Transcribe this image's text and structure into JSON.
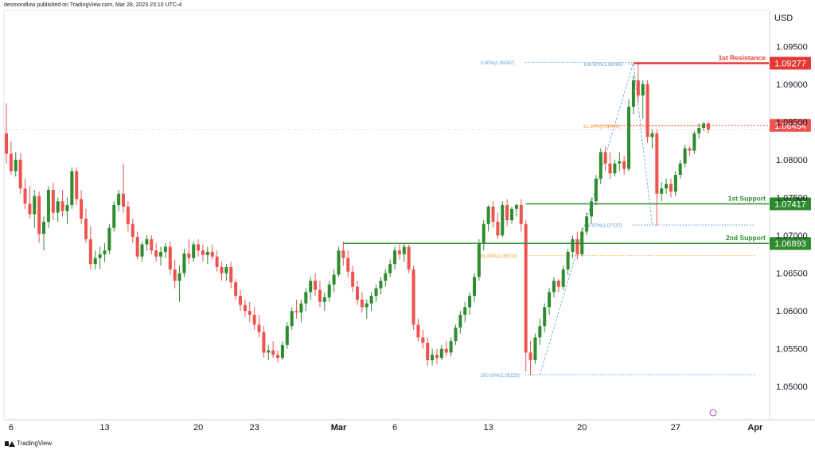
{
  "header": {
    "attribution": "desmondlow published on TradingView.com, Mar 28, 2023 23:10 UTC-4"
  },
  "brand": {
    "name": "TradingView"
  },
  "colors": {
    "up": "#2e8b2e",
    "down": "#ef5350",
    "resistance": "#e53935",
    "support": "#2e8b2e",
    "fib": "#5b9bd5",
    "fib_orange": "#f0a030",
    "axis_text": "#131722"
  },
  "chart_data": {
    "type": "candlestick",
    "currency": "USD",
    "ylim": [
      1.0475,
      1.0985
    ],
    "y_ticks": [
      "1.09500",
      "1.09000",
      "1.08500",
      "1.08000",
      "1.07500",
      "1.07000",
      "1.06500",
      "1.06000",
      "1.05500",
      "1.05000"
    ],
    "x_ticks": [
      {
        "label": "6",
        "bar": 1
      },
      {
        "label": "13",
        "bar": 21
      },
      {
        "label": "20",
        "bar": 41
      },
      {
        "label": "23",
        "bar": 53
      },
      {
        "label": "Mar",
        "bar": 71
      },
      {
        "label": "6",
        "bar": 83
      },
      {
        "label": "13",
        "bar": 103
      },
      {
        "label": "20",
        "bar": 123
      },
      {
        "label": "27",
        "bar": 143
      },
      {
        "label": "Apr",
        "bar": 160
      }
    ],
    "levels": [
      {
        "name": "1st Resistance",
        "value": "1.09277",
        "y": 1.09277,
        "role": "resistance",
        "from_bar": 134
      },
      {
        "name": "",
        "value": "1.08454",
        "y": 1.08454,
        "role": "last",
        "from_bar": 124
      },
      {
        "name": "1st Support",
        "value": "1.07417",
        "y": 1.07417,
        "role": "support",
        "from_bar": 111
      },
      {
        "name": "2nd Support",
        "value": "1.06893",
        "y": 1.06893,
        "role": "support",
        "from_bar": 72
      }
    ],
    "fib_labels": [
      {
        "text": "0.00%(1.09287)",
        "y": 1.09287,
        "bar": 102,
        "to_bar": 134,
        "color": "fib"
      },
      {
        "text": "100.00%(1.09266)",
        "y": 1.09266,
        "bar": 124,
        "to_bar": 134,
        "color": "fib"
      },
      {
        "text": "61.80%(1.08446)",
        "y": 1.08446,
        "bar": 124,
        "to_bar": 150,
        "color": "fib_orange"
      },
      {
        "text": "0.00%(1.07137)",
        "y": 1.07137,
        "bar": 125,
        "to_bar": 160,
        "color": "fib"
      },
      {
        "text": "61.80%(1.06733)",
        "y": 1.06733,
        "bar": 102,
        "to_bar": 160,
        "color": "fib_orange"
      },
      {
        "text": "100.00%(1.05155)",
        "y": 1.05155,
        "bar": 102,
        "to_bar": 160,
        "color": "fib"
      }
    ],
    "candles": [
      [
        1.0835,
        1.0875,
        1.0795,
        1.0808
      ],
      [
        1.0808,
        1.0825,
        1.078,
        1.0785
      ],
      [
        1.0785,
        1.081,
        1.0778,
        1.08
      ],
      [
        1.08,
        1.0808,
        1.0755,
        1.0762
      ],
      [
        1.0762,
        1.0775,
        1.0735,
        1.0742
      ],
      [
        1.0742,
        1.0765,
        1.0722,
        1.0728
      ],
      [
        1.0728,
        1.076,
        1.071,
        1.0752
      ],
      [
        1.0752,
        1.0758,
        1.069,
        1.0702
      ],
      [
        1.0702,
        1.0725,
        1.068,
        1.0718
      ],
      [
        1.0718,
        1.0765,
        1.071,
        1.076
      ],
      [
        1.076,
        1.077,
        1.072,
        1.073
      ],
      [
        1.073,
        1.075,
        1.0718,
        1.0745
      ],
      [
        1.0745,
        1.076,
        1.0725,
        1.0732
      ],
      [
        1.0732,
        1.075,
        1.0715,
        1.074
      ],
      [
        1.074,
        1.079,
        1.0735,
        1.0785
      ],
      [
        1.0785,
        1.079,
        1.074,
        1.0748
      ],
      [
        1.0748,
        1.076,
        1.0715,
        1.0722
      ],
      [
        1.0722,
        1.0735,
        1.069,
        1.0695
      ],
      [
        1.0695,
        1.0712,
        1.0655,
        1.0662
      ],
      [
        1.0662,
        1.068,
        1.0655,
        1.067
      ],
      [
        1.067,
        1.0685,
        1.0655,
        1.0675
      ],
      [
        1.0675,
        1.069,
        1.0665,
        1.068
      ],
      [
        1.068,
        1.0715,
        1.0675,
        1.071
      ],
      [
        1.071,
        1.0745,
        1.0705,
        1.074
      ],
      [
        1.074,
        1.076,
        1.0732,
        1.0755
      ],
      [
        1.0755,
        1.0795,
        1.073,
        1.0738
      ],
      [
        1.0738,
        1.0745,
        1.0705,
        1.0715
      ],
      [
        1.0715,
        1.0722,
        1.069,
        1.0698
      ],
      [
        1.0698,
        1.0705,
        1.0668,
        1.0672
      ],
      [
        1.0672,
        1.0692,
        1.0665,
        1.0688
      ],
      [
        1.0688,
        1.07,
        1.068,
        1.0695
      ],
      [
        1.0695,
        1.07,
        1.0675,
        1.068
      ],
      [
        1.068,
        1.069,
        1.0665,
        1.0672
      ],
      [
        1.0672,
        1.0685,
        1.066,
        1.0678
      ],
      [
        1.0678,
        1.069,
        1.067,
        1.0685
      ],
      [
        1.0685,
        1.0692,
        1.0648,
        1.0655
      ],
      [
        1.0655,
        1.0668,
        1.063,
        1.064
      ],
      [
        1.064,
        1.066,
        1.0612,
        1.065
      ],
      [
        1.065,
        1.0682,
        1.0645,
        1.0676
      ],
      [
        1.0676,
        1.0695,
        1.0662,
        1.067
      ],
      [
        1.067,
        1.0692,
        1.0665,
        1.0688
      ],
      [
        1.0688,
        1.0695,
        1.0672,
        1.068
      ],
      [
        1.068,
        1.0688,
        1.0665,
        1.0674
      ],
      [
        1.0674,
        1.0685,
        1.0662,
        1.0678
      ],
      [
        1.0678,
        1.0688,
        1.0668,
        1.0672
      ],
      [
        1.0672,
        1.068,
        1.0652,
        1.0658
      ],
      [
        1.0658,
        1.0665,
        1.064,
        1.065
      ],
      [
        1.065,
        1.0662,
        1.064,
        1.0658
      ],
      [
        1.0658,
        1.0665,
        1.063,
        1.0638
      ],
      [
        1.0638,
        1.0642,
        1.0615,
        1.062
      ],
      [
        1.062,
        1.0628,
        1.06,
        1.0608
      ],
      [
        1.0608,
        1.0615,
        1.0592,
        1.06
      ],
      [
        1.06,
        1.0612,
        1.0585,
        1.0595
      ],
      [
        1.0595,
        1.0605,
        1.0575,
        1.0582
      ],
      [
        1.0582,
        1.0595,
        1.0565,
        1.0572
      ],
      [
        1.0572,
        1.058,
        1.0538,
        1.0545
      ],
      [
        1.0545,
        1.0555,
        1.0535,
        1.0548
      ],
      [
        1.0548,
        1.056,
        1.0538,
        1.0542
      ],
      [
        1.0542,
        1.0548,
        1.0532,
        1.0538
      ],
      [
        1.0538,
        1.056,
        1.0535,
        1.0555
      ],
      [
        1.0555,
        1.0585,
        1.055,
        1.058
      ],
      [
        1.058,
        1.0605,
        1.0575,
        1.06
      ],
      [
        1.06,
        1.0615,
        1.059,
        1.0598
      ],
      [
        1.0598,
        1.0615,
        1.0585,
        1.061
      ],
      [
        1.061,
        1.063,
        1.06,
        1.0625
      ],
      [
        1.0625,
        1.0645,
        1.0615,
        1.064
      ],
      [
        1.064,
        1.065,
        1.062,
        1.0628
      ],
      [
        1.0628,
        1.064,
        1.0605,
        1.0612
      ],
      [
        1.0612,
        1.0625,
        1.06,
        1.0618
      ],
      [
        1.0618,
        1.064,
        1.0612,
        1.0635
      ],
      [
        1.0635,
        1.0655,
        1.0625,
        1.0648
      ],
      [
        1.0648,
        1.0685,
        1.0645,
        1.068
      ],
      [
        1.068,
        1.0692,
        1.066,
        1.067
      ],
      [
        1.067,
        1.068,
        1.0645,
        1.0652
      ],
      [
        1.0652,
        1.066,
        1.0625,
        1.0632
      ],
      [
        1.0632,
        1.064,
        1.0608,
        1.0615
      ],
      [
        1.0615,
        1.0625,
        1.0598,
        1.0605
      ],
      [
        1.0605,
        1.0615,
        1.059,
        1.061
      ],
      [
        1.061,
        1.0625,
        1.06,
        1.062
      ],
      [
        1.062,
        1.0635,
        1.0612,
        1.063
      ],
      [
        1.063,
        1.0645,
        1.0622,
        1.064
      ],
      [
        1.064,
        1.0655,
        1.0632,
        1.065
      ],
      [
        1.065,
        1.0668,
        1.0645,
        1.0662
      ],
      [
        1.0662,
        1.0685,
        1.0655,
        1.068
      ],
      [
        1.068,
        1.0688,
        1.0668,
        1.0675
      ],
      [
        1.0675,
        1.069,
        1.0665,
        1.0685
      ],
      [
        1.0685,
        1.0688,
        1.065,
        1.0655
      ],
      [
        1.0655,
        1.066,
        1.0575,
        1.0582
      ],
      [
        1.0582,
        1.059,
        1.056,
        1.0565
      ],
      [
        1.0565,
        1.0575,
        1.055,
        1.0558
      ],
      [
        1.0558,
        1.0565,
        1.0528,
        1.0535
      ],
      [
        1.0535,
        1.055,
        1.0528,
        1.0542
      ],
      [
        1.0542,
        1.055,
        1.053,
        1.0538
      ],
      [
        1.0538,
        1.0555,
        1.0535,
        1.055
      ],
      [
        1.055,
        1.056,
        1.054,
        1.0545
      ],
      [
        1.0545,
        1.0565,
        1.054,
        1.056
      ],
      [
        1.056,
        1.0582,
        1.0555,
        1.0578
      ],
      [
        1.0578,
        1.06,
        1.057,
        1.0595
      ],
      [
        1.0595,
        1.0612,
        1.0585,
        1.0605
      ],
      [
        1.0605,
        1.0625,
        1.0595,
        1.062
      ],
      [
        1.062,
        1.065,
        1.0612,
        1.0645
      ],
      [
        1.0645,
        1.0695,
        1.064,
        1.069
      ],
      [
        1.069,
        1.072,
        1.068,
        1.0715
      ],
      [
        1.0715,
        1.074,
        1.0705,
        1.0738
      ],
      [
        1.0738,
        1.0745,
        1.071,
        1.0718
      ],
      [
        1.0718,
        1.073,
        1.0695,
        1.07
      ],
      [
        1.07,
        1.0745,
        1.0698,
        1.074
      ],
      [
        1.074,
        1.0748,
        1.0712,
        1.072
      ],
      [
        1.072,
        1.0738,
        1.0715,
        1.0735
      ],
      [
        1.0735,
        1.0742,
        1.0725,
        1.074
      ],
      [
        1.074,
        1.0748,
        1.0705,
        1.0715
      ],
      [
        1.0715,
        1.072,
        1.052,
        1.0545
      ],
      [
        1.0545,
        1.056,
        1.0515,
        1.0535
      ],
      [
        1.0535,
        1.057,
        1.053,
        1.0565
      ],
      [
        1.0565,
        1.059,
        1.0555,
        1.058
      ],
      [
        1.058,
        1.061,
        1.0572,
        1.0605
      ],
      [
        1.0605,
        1.063,
        1.0595,
        1.0625
      ],
      [
        1.0625,
        1.0645,
        1.0618,
        1.064
      ],
      [
        1.064,
        1.0642,
        1.0625,
        1.0632
      ],
      [
        1.0632,
        1.066,
        1.0628,
        1.0655
      ],
      [
        1.0655,
        1.0682,
        1.0648,
        1.0678
      ],
      [
        1.0678,
        1.07,
        1.067,
        1.0695
      ],
      [
        1.0695,
        1.0705,
        1.0668,
        1.0675
      ],
      [
        1.0675,
        1.071,
        1.0672,
        1.0705
      ],
      [
        1.0705,
        1.073,
        1.07,
        1.0725
      ],
      [
        1.0725,
        1.075,
        1.0715,
        1.0745
      ],
      [
        1.0745,
        1.078,
        1.074,
        1.0775
      ],
      [
        1.0775,
        1.0815,
        1.0768,
        1.081
      ],
      [
        1.081,
        1.0818,
        1.0785,
        1.0795
      ],
      [
        1.0795,
        1.081,
        1.0775,
        1.0782
      ],
      [
        1.0782,
        1.08,
        1.0778,
        1.0795
      ],
      [
        1.0795,
        1.081,
        1.0785,
        1.0798
      ],
      [
        1.0798,
        1.0805,
        1.078,
        1.0788
      ],
      [
        1.0788,
        1.088,
        1.0785,
        1.087
      ],
      [
        1.087,
        1.0912,
        1.086,
        1.0905
      ],
      [
        1.0905,
        1.0928,
        1.0875,
        1.0885
      ],
      [
        1.0885,
        1.0905,
        1.0855,
        1.09
      ],
      [
        1.09,
        1.0905,
        1.0822,
        1.083
      ],
      [
        1.083,
        1.084,
        1.0815,
        1.0835
      ],
      [
        1.0835,
        1.084,
        1.0713,
        1.0755
      ],
      [
        1.0755,
        1.077,
        1.0745,
        1.0762
      ],
      [
        1.0762,
        1.0775,
        1.0755,
        1.0768
      ],
      [
        1.0768,
        1.0775,
        1.075,
        1.0758
      ],
      [
        1.0758,
        1.0785,
        1.0752,
        1.078
      ],
      [
        1.078,
        1.08,
        1.0775,
        1.0795
      ],
      [
        1.0795,
        1.082,
        1.079,
        1.0815
      ],
      [
        1.0815,
        1.0818,
        1.0805,
        1.0812
      ],
      [
        1.0812,
        1.0838,
        1.0808,
        1.0835
      ],
      [
        1.0835,
        1.0848,
        1.0828,
        1.0842
      ],
      [
        1.0842,
        1.085,
        1.0838,
        1.0848
      ],
      [
        1.0848,
        1.085,
        1.0835,
        1.084
      ]
    ]
  }
}
